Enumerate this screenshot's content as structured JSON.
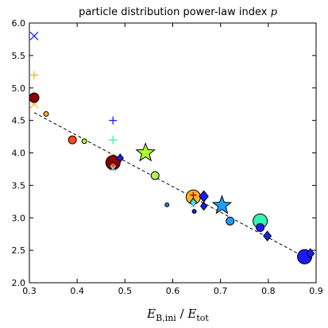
{
  "chart_data": {
    "type": "scatter",
    "title_text": "particle distribution power-law index ",
    "title_symbol": "p",
    "xlabel": {
      "E_main": "E",
      "E_sub": "B,ini",
      "divider": " / ",
      "E2_main": "E",
      "E2_sub": "tot"
    },
    "ylabel": "",
    "xlim": [
      0.3,
      0.9
    ],
    "ylim": [
      2.0,
      6.0
    ],
    "xticks": [
      "0.3",
      "0.4",
      "0.5",
      "0.6",
      "0.7",
      "0.8",
      "0.9"
    ],
    "yticks": [
      "2.0",
      "2.5",
      "3.0",
      "3.5",
      "4.0",
      "4.5",
      "5.0",
      "5.5",
      "6.0"
    ],
    "grid": false,
    "colors": {
      "blue": "#1a1aff",
      "dark_blue": "#0a2ad9",
      "sky_blue": "#1aa0ff",
      "cyan": "#3ce0d0",
      "aqua_green": "#34f5b0",
      "yellow_green": "#a8ff2a",
      "lime_green": "#b8f05a",
      "orange": "#ffb22a",
      "red_orange": "#ff4a1a",
      "dark_red": "#8b0000",
      "light_blue": "#8ad2ff",
      "steel_blue": "#3a78c8"
    },
    "fit_line": {
      "x": [
        0.31,
        0.88
      ],
      "y": [
        4.62,
        2.38
      ]
    },
    "points": [
      {
        "x": 0.31,
        "y": 5.8,
        "marker": "x",
        "size": 10,
        "color": "#1a1aff"
      },
      {
        "x": 0.31,
        "y": 5.2,
        "marker": "+",
        "size": 10,
        "color": "#ffb22a"
      },
      {
        "x": 0.31,
        "y": 4.75,
        "marker": "x",
        "size": 10,
        "color": "#ffb22a"
      },
      {
        "x": 0.31,
        "y": 4.85,
        "marker": "circle",
        "size": 6,
        "color": "#8b0000"
      },
      {
        "x": 0.335,
        "y": 4.6,
        "marker": "circle",
        "size": 3,
        "color": "#ffb22a"
      },
      {
        "x": 0.39,
        "y": 4.2,
        "marker": "circle",
        "size": 5,
        "color": "#ff4a1a"
      },
      {
        "x": 0.415,
        "y": 4.18,
        "marker": "circle",
        "size": 3,
        "color": "#a8ff2a"
      },
      {
        "x": 0.475,
        "y": 4.5,
        "marker": "+",
        "size": 10,
        "color": "#1a1aff"
      },
      {
        "x": 0.475,
        "y": 4.2,
        "marker": "+",
        "size": 11,
        "color": "#34f5b0"
      },
      {
        "x": 0.475,
        "y": 3.85,
        "marker": "circle",
        "size": 9,
        "color": "#8b0000"
      },
      {
        "x": 0.475,
        "y": 3.8,
        "marker": "circle",
        "size": 4,
        "color": "#ff4a1a"
      },
      {
        "x": 0.475,
        "y": 3.76,
        "marker": "x",
        "size": 7,
        "color": "#8ad2ff"
      },
      {
        "x": 0.49,
        "y": 3.92,
        "marker": "diamond",
        "size": 5,
        "color": "#1a1aff"
      },
      {
        "x": 0.543,
        "y": 4.0,
        "marker": "star",
        "size": 12,
        "color": "#a8ff2a"
      },
      {
        "x": 0.563,
        "y": 3.65,
        "marker": "circle",
        "size": 5,
        "color": "#b8f05a"
      },
      {
        "x": 0.588,
        "y": 3.2,
        "marker": "circle",
        "size": 2.5,
        "color": "#3a78c8"
      },
      {
        "x": 0.643,
        "y": 3.32,
        "marker": "circle",
        "size": 9,
        "color": "#ffb22a"
      },
      {
        "x": 0.643,
        "y": 3.35,
        "marker": "+",
        "size": 8,
        "color": "#8b0000"
      },
      {
        "x": 0.643,
        "y": 3.24,
        "marker": "diamond",
        "size": 5,
        "color": "#3ce0d0"
      },
      {
        "x": 0.643,
        "y": 3.2,
        "marker": "x",
        "size": 6,
        "color": "#8ad2ff"
      },
      {
        "x": 0.645,
        "y": 3.1,
        "marker": "circle",
        "size": 2.5,
        "color": "#0a2ad9"
      },
      {
        "x": 0.665,
        "y": 3.33,
        "marker": "diamond",
        "size": 7,
        "color": "#1a1aff"
      },
      {
        "x": 0.665,
        "y": 3.18,
        "marker": "diamond",
        "size": 5,
        "color": "#1a1aff"
      },
      {
        "x": 0.703,
        "y": 3.19,
        "marker": "star",
        "size": 12,
        "color": "#1aa0ff"
      },
      {
        "x": 0.72,
        "y": 2.95,
        "marker": "circle",
        "size": 5,
        "color": "#1aa0ff"
      },
      {
        "x": 0.783,
        "y": 2.95,
        "marker": "circle",
        "size": 9,
        "color": "#34f5b0"
      },
      {
        "x": 0.783,
        "y": 2.85,
        "marker": "circle",
        "size": 5,
        "color": "#1a1aff"
      },
      {
        "x": 0.798,
        "y": 2.72,
        "marker": "diamond",
        "size": 6,
        "color": "#0a2ad9"
      },
      {
        "x": 0.876,
        "y": 2.4,
        "marker": "circle",
        "size": 9,
        "color": "#1a1aff"
      },
      {
        "x": 0.888,
        "y": 2.45,
        "marker": "diamond",
        "size": 6,
        "color": "#1a1aff"
      }
    ]
  }
}
